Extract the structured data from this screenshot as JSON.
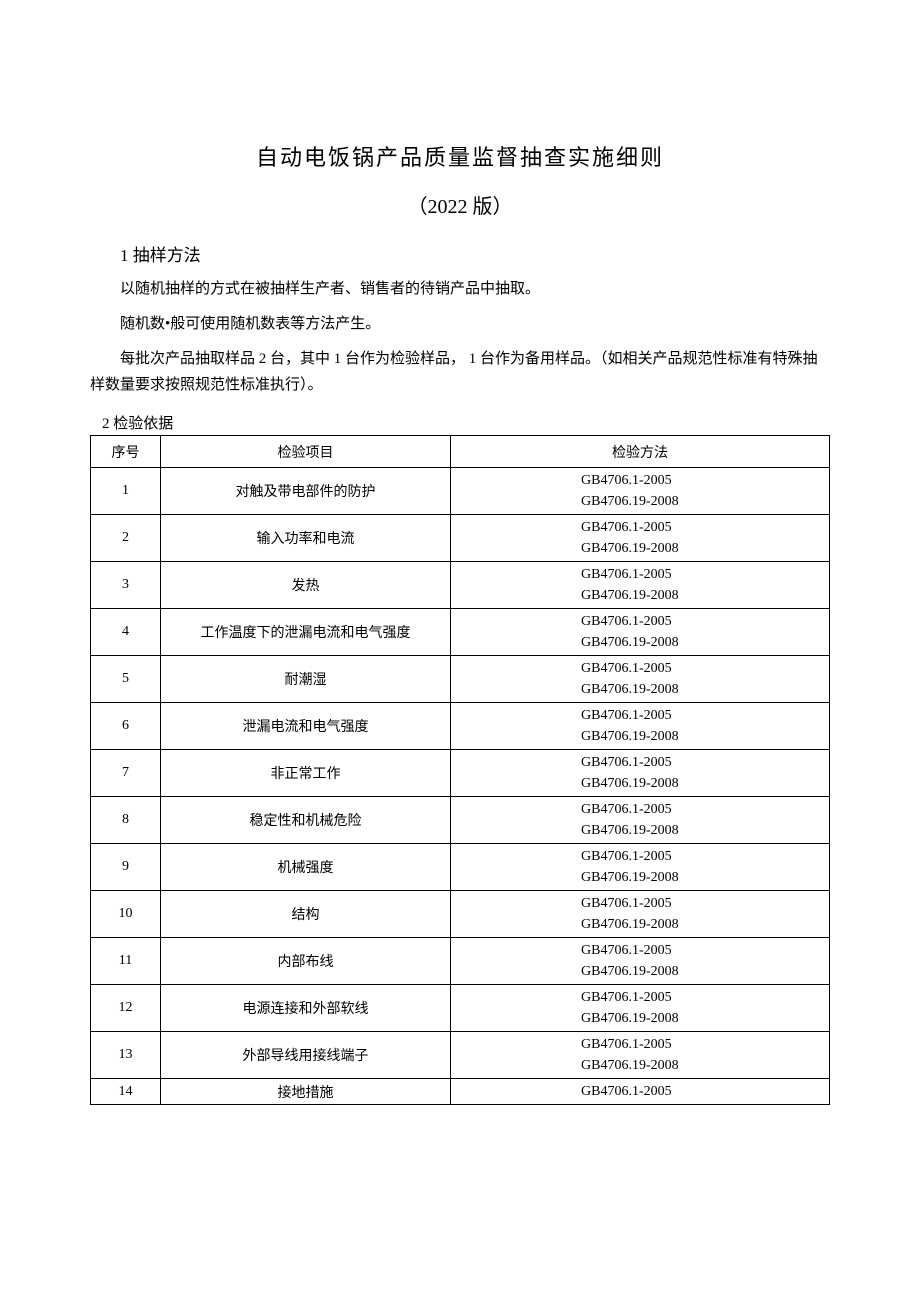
{
  "title": "自动电饭锅产品质量监督抽查实施细则",
  "subtitle": "（2022 版）",
  "section1_heading": "1 抽样方法",
  "para1": "以随机抽样的方式在被抽样生产者、销售者的待销产品中抽取。",
  "para2": "随机数•般可使用随机数表等方法产生。",
  "para3": "每批次产品抽取样品 2 台，其中 1 台作为检验样品， 1 台作为备用样品。（如相关产品规范性标准有特殊抽样数量要求按照规范性标准执行）。",
  "section2_heading": "2 检验依据",
  "table": {
    "headers": {
      "seq": "序号",
      "item": "检验项目",
      "method": "检验方法"
    },
    "std1": "GB4706.1-2005",
    "std2": "GB4706.19-2008",
    "rows": [
      {
        "seq": "1",
        "item": "对触及带电部件的防护"
      },
      {
        "seq": "2",
        "item": "输入功率和电流"
      },
      {
        "seq": "3",
        "item": "发热"
      },
      {
        "seq": "4",
        "item": "工作温度下的泄漏电流和电气强度"
      },
      {
        "seq": "5",
        "item": "耐潮湿"
      },
      {
        "seq": "6",
        "item": "泄漏电流和电气强度"
      },
      {
        "seq": "7",
        "item": "非正常工作"
      },
      {
        "seq": "8",
        "item": "稳定性和机械危险"
      },
      {
        "seq": "9",
        "item": "机械强度"
      },
      {
        "seq": "10",
        "item": "结构"
      },
      {
        "seq": "11",
        "item": "内部布线"
      },
      {
        "seq": "12",
        "item": "电源连接和外部软线"
      },
      {
        "seq": "13",
        "item": "外部导线用接线端子"
      },
      {
        "seq": "14",
        "item": "接地措施",
        "single": true
      }
    ]
  }
}
